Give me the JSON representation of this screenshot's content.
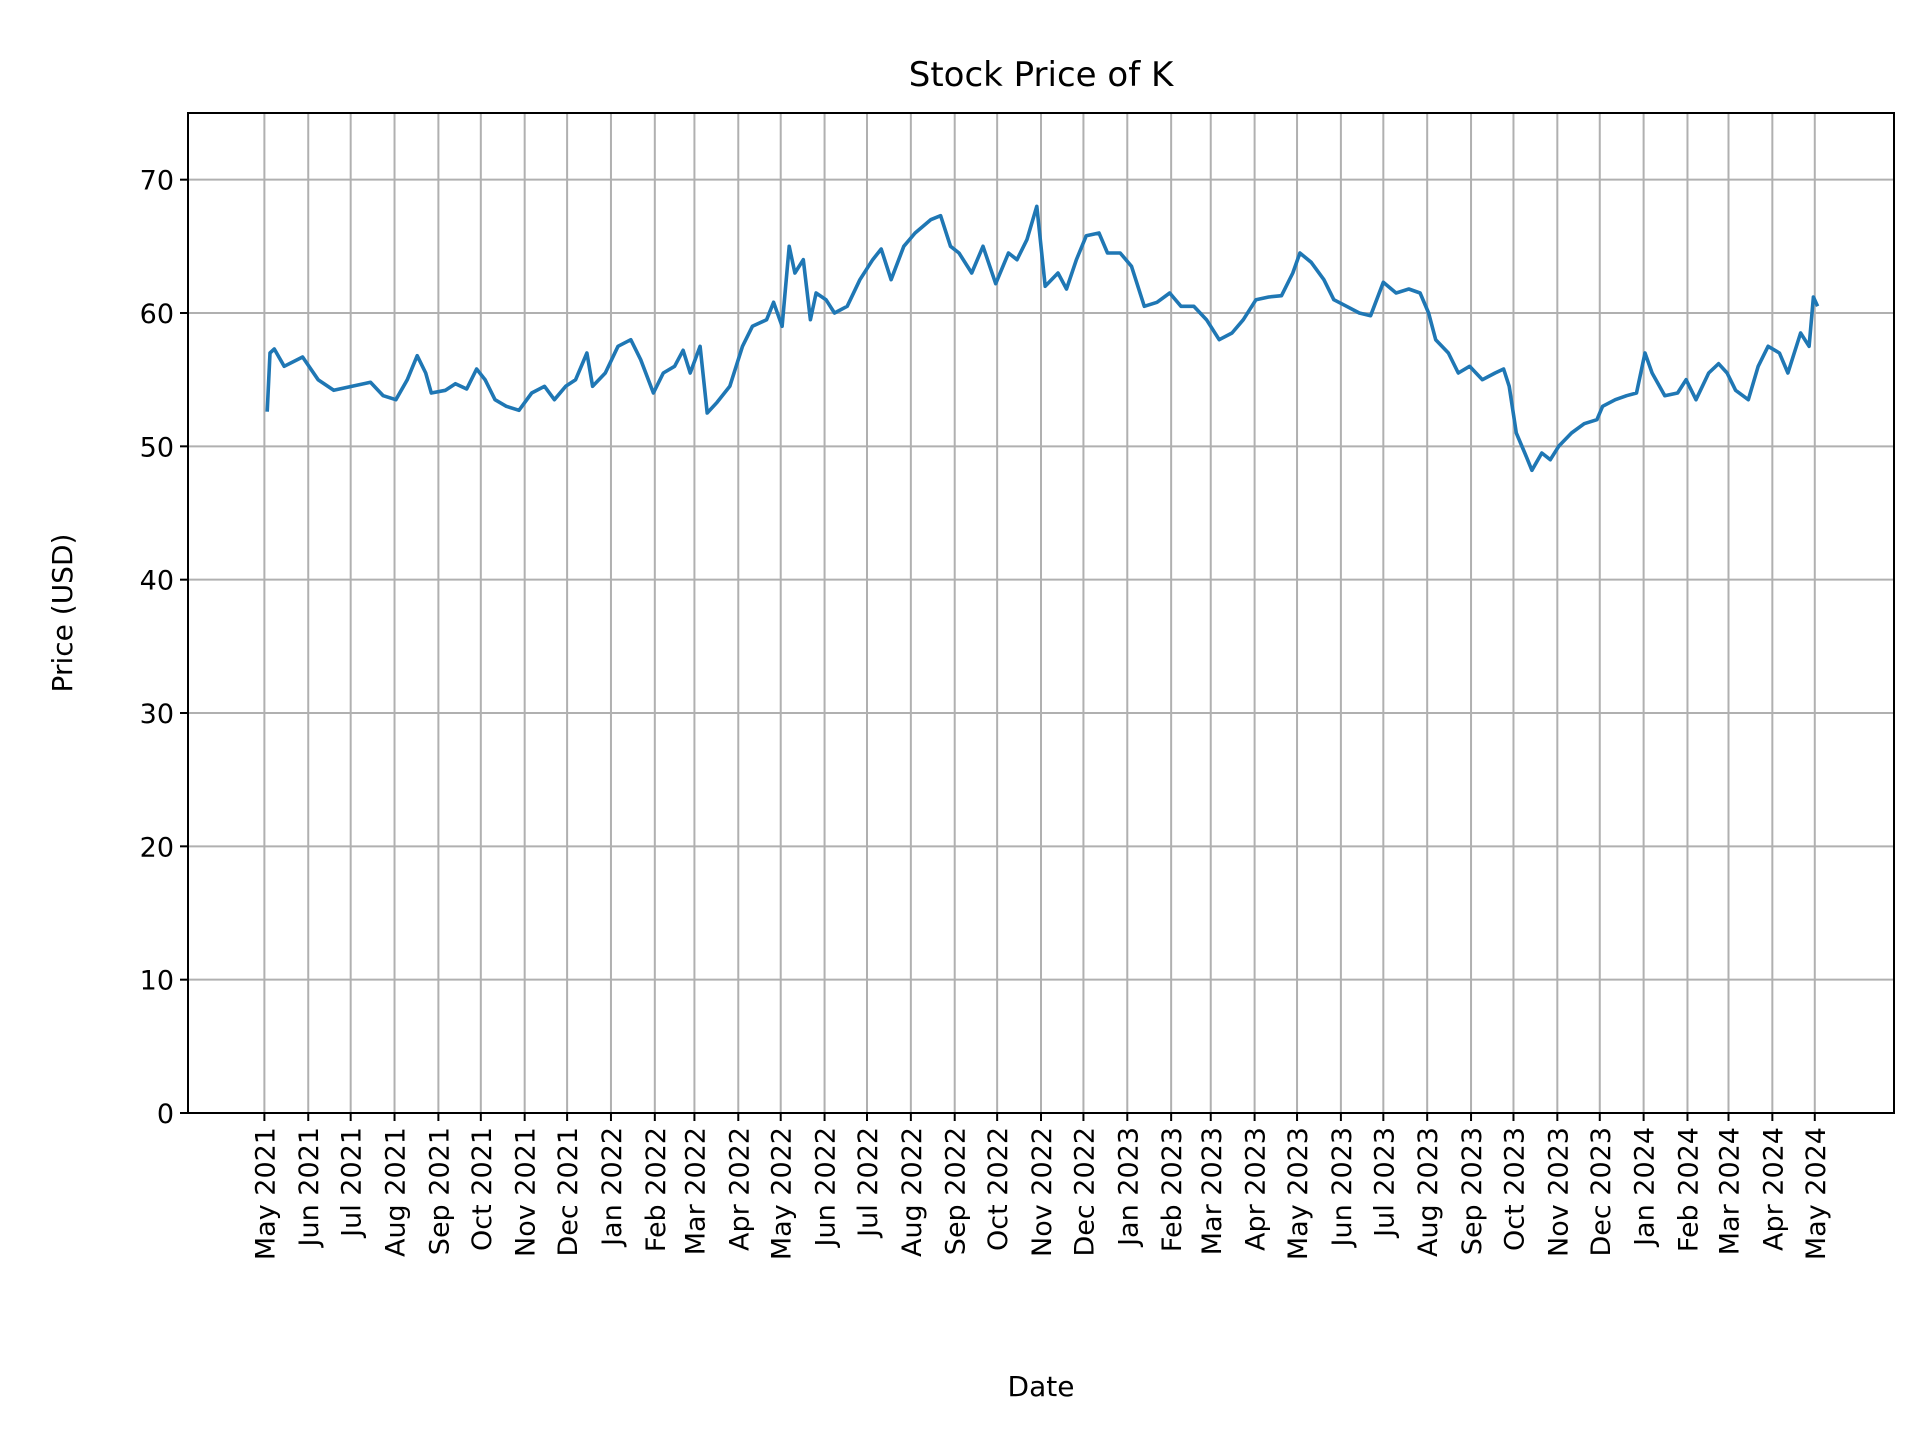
{
  "chart_data": {
    "type": "line",
    "title": "Stock Price of K",
    "xlabel": "Date",
    "ylabel": "Price (USD)",
    "ylim": [
      0,
      75
    ],
    "xlim": [
      "2021-03-08",
      "2024-06-26"
    ],
    "grid": true,
    "line_color": "#1f77b4",
    "grid_color": "#b0b0b0",
    "yticks": [
      0,
      10,
      20,
      30,
      40,
      50,
      60,
      70
    ],
    "xticks": [
      {
        "date": "2021-05-01",
        "label": "May 2021"
      },
      {
        "date": "2021-06-01",
        "label": "Jun 2021"
      },
      {
        "date": "2021-07-01",
        "label": "Jul 2021"
      },
      {
        "date": "2021-08-01",
        "label": "Aug 2021"
      },
      {
        "date": "2021-09-01",
        "label": "Sep 2021"
      },
      {
        "date": "2021-10-01",
        "label": "Oct 2021"
      },
      {
        "date": "2021-11-01",
        "label": "Nov 2021"
      },
      {
        "date": "2021-12-01",
        "label": "Dec 2021"
      },
      {
        "date": "2022-01-01",
        "label": "Jan 2022"
      },
      {
        "date": "2022-02-01",
        "label": "Feb 2022"
      },
      {
        "date": "2022-03-01",
        "label": "Mar 2022"
      },
      {
        "date": "2022-04-01",
        "label": "Apr 2022"
      },
      {
        "date": "2022-05-01",
        "label": "May 2022"
      },
      {
        "date": "2022-06-01",
        "label": "Jun 2022"
      },
      {
        "date": "2022-07-01",
        "label": "Jul 2022"
      },
      {
        "date": "2022-08-01",
        "label": "Aug 2022"
      },
      {
        "date": "2022-09-01",
        "label": "Sep 2022"
      },
      {
        "date": "2022-10-01",
        "label": "Oct 2022"
      },
      {
        "date": "2022-11-01",
        "label": "Nov 2022"
      },
      {
        "date": "2022-12-01",
        "label": "Dec 2022"
      },
      {
        "date": "2023-01-01",
        "label": "Jan 2023"
      },
      {
        "date": "2023-02-01",
        "label": "Feb 2023"
      },
      {
        "date": "2023-03-01",
        "label": "Mar 2023"
      },
      {
        "date": "2023-04-01",
        "label": "Apr 2023"
      },
      {
        "date": "2023-05-01",
        "label": "May 2023"
      },
      {
        "date": "2023-06-01",
        "label": "Jun 2023"
      },
      {
        "date": "2023-07-01",
        "label": "Jul 2023"
      },
      {
        "date": "2023-08-01",
        "label": "Aug 2023"
      },
      {
        "date": "2023-09-01",
        "label": "Sep 2023"
      },
      {
        "date": "2023-10-01",
        "label": "Oct 2023"
      },
      {
        "date": "2023-11-01",
        "label": "Nov 2023"
      },
      {
        "date": "2023-12-01",
        "label": "Dec 2023"
      },
      {
        "date": "2024-01-01",
        "label": "Jan 2024"
      },
      {
        "date": "2024-02-01",
        "label": "Feb 2024"
      },
      {
        "date": "2024-03-01",
        "label": "Mar 2024"
      },
      {
        "date": "2024-04-01",
        "label": "Apr 2024"
      },
      {
        "date": "2024-05-01",
        "label": "May 2024"
      }
    ],
    "series": [
      {
        "x": [
          "2021-05-03",
          "2021-05-05",
          "2021-05-08",
          "2021-05-15",
          "2021-05-28",
          "2021-06-08",
          "2021-06-19",
          "2021-07-02",
          "2021-07-15",
          "2021-07-24",
          "2021-08-02",
          "2021-08-10",
          "2021-08-17",
          "2021-08-23",
          "2021-08-27",
          "2021-09-06",
          "2021-09-13",
          "2021-09-21",
          "2021-09-28",
          "2021-10-04",
          "2021-10-11",
          "2021-10-19",
          "2021-10-28",
          "2021-11-06",
          "2021-11-15",
          "2021-11-22",
          "2021-11-30",
          "2021-12-07",
          "2021-12-15",
          "2021-12-19",
          "2021-12-28",
          "2022-01-06",
          "2022-01-15",
          "2022-01-22",
          "2022-01-31",
          "2022-02-07",
          "2022-02-15",
          "2022-02-21",
          "2022-02-26",
          "2022-03-05",
          "2022-03-10",
          "2022-03-17",
          "2022-03-26",
          "2022-04-04",
          "2022-04-11",
          "2022-04-21",
          "2022-04-26",
          "2022-05-02",
          "2022-05-07",
          "2022-05-11",
          "2022-05-17",
          "2022-05-22",
          "2022-05-26",
          "2022-06-02",
          "2022-06-08",
          "2022-06-17",
          "2022-06-26",
          "2022-07-05",
          "2022-07-11",
          "2022-07-18",
          "2022-07-27",
          "2022-08-04",
          "2022-08-15",
          "2022-08-22",
          "2022-08-29",
          "2022-09-04",
          "2022-09-13",
          "2022-09-21",
          "2022-09-30",
          "2022-10-09",
          "2022-10-15",
          "2022-10-22",
          "2022-10-29",
          "2022-11-04",
          "2022-11-13",
          "2022-11-19",
          "2022-11-26",
          "2022-12-03",
          "2022-12-12",
          "2022-12-18",
          "2022-12-27",
          "2023-01-04",
          "2023-01-13",
          "2023-01-22",
          "2023-01-31",
          "2023-02-08",
          "2023-02-17",
          "2023-02-26",
          "2023-03-07",
          "2023-03-16",
          "2023-03-24",
          "2023-04-02",
          "2023-04-11",
          "2023-04-20",
          "2023-04-28",
          "2023-05-03",
          "2023-05-11",
          "2023-05-20",
          "2023-05-27",
          "2023-06-05",
          "2023-06-14",
          "2023-06-22",
          "2023-07-01",
          "2023-07-10",
          "2023-07-19",
          "2023-07-27",
          "2023-08-02",
          "2023-08-07",
          "2023-08-16",
          "2023-08-23",
          "2023-08-31",
          "2023-09-09",
          "2023-09-18",
          "2023-09-24",
          "2023-09-28",
          "2023-10-03",
          "2023-10-09",
          "2023-10-14",
          "2023-10-21",
          "2023-10-27",
          "2023-11-02",
          "2023-11-11",
          "2023-11-20",
          "2023-11-29",
          "2023-12-03",
          "2023-12-12",
          "2023-12-20",
          "2023-12-27",
          "2024-01-02",
          "2024-01-07",
          "2024-01-16",
          "2024-01-25",
          "2024-01-31",
          "2024-02-07",
          "2024-02-16",
          "2024-02-23",
          "2024-02-29",
          "2024-03-06",
          "2024-03-15",
          "2024-03-22",
          "2024-03-29",
          "2024-04-06",
          "2024-04-12",
          "2024-04-21",
          "2024-04-27",
          "2024-04-30",
          "2024-05-03"
        ],
        "y": [
          52.6,
          57,
          57.3,
          56,
          56.7,
          55,
          54.2,
          54.5,
          54.8,
          53.8,
          53.5,
          55,
          56.8,
          55.5,
          54,
          54.2,
          54.7,
          54.3,
          55.8,
          55,
          53.5,
          53,
          52.7,
          54,
          54.5,
          53.5,
          54.5,
          55,
          57,
          54.5,
          55.5,
          57.5,
          58,
          56.5,
          54,
          55.5,
          56,
          57.2,
          55.5,
          57.5,
          52.5,
          53.3,
          54.5,
          57.5,
          59,
          59.5,
          60.8,
          59,
          65,
          63,
          64,
          59.5,
          61.5,
          61,
          60,
          60.5,
          62.5,
          64,
          64.8,
          62.5,
          65,
          66,
          67,
          67.3,
          65,
          64.5,
          63,
          65,
          62.2,
          64.5,
          64,
          65.5,
          68,
          62,
          63,
          61.8,
          64,
          65.8,
          66,
          64.5,
          64.5,
          63.5,
          60.5,
          60.8,
          61.5,
          60.5,
          60.5,
          59.5,
          58,
          58.5,
          59.5,
          61,
          61.2,
          61.3,
          63,
          64.5,
          63.8,
          62.5,
          61,
          60.5,
          60,
          59.8,
          62.3,
          61.5,
          61.8,
          61.5,
          60,
          58,
          57,
          55.5,
          56,
          55,
          55.5,
          55.8,
          54.5,
          51,
          49.5,
          48.2,
          49.5,
          49,
          50,
          51,
          51.7,
          52,
          53,
          53.5,
          53.8,
          54,
          57,
          55.5,
          53.8,
          54,
          55,
          53.5,
          55.5,
          56.2,
          55.5,
          54.2,
          53.5,
          56,
          57.5,
          57,
          55.5,
          58.5,
          57.5,
          61.2,
          60.5
        ]
      }
    ]
  }
}
